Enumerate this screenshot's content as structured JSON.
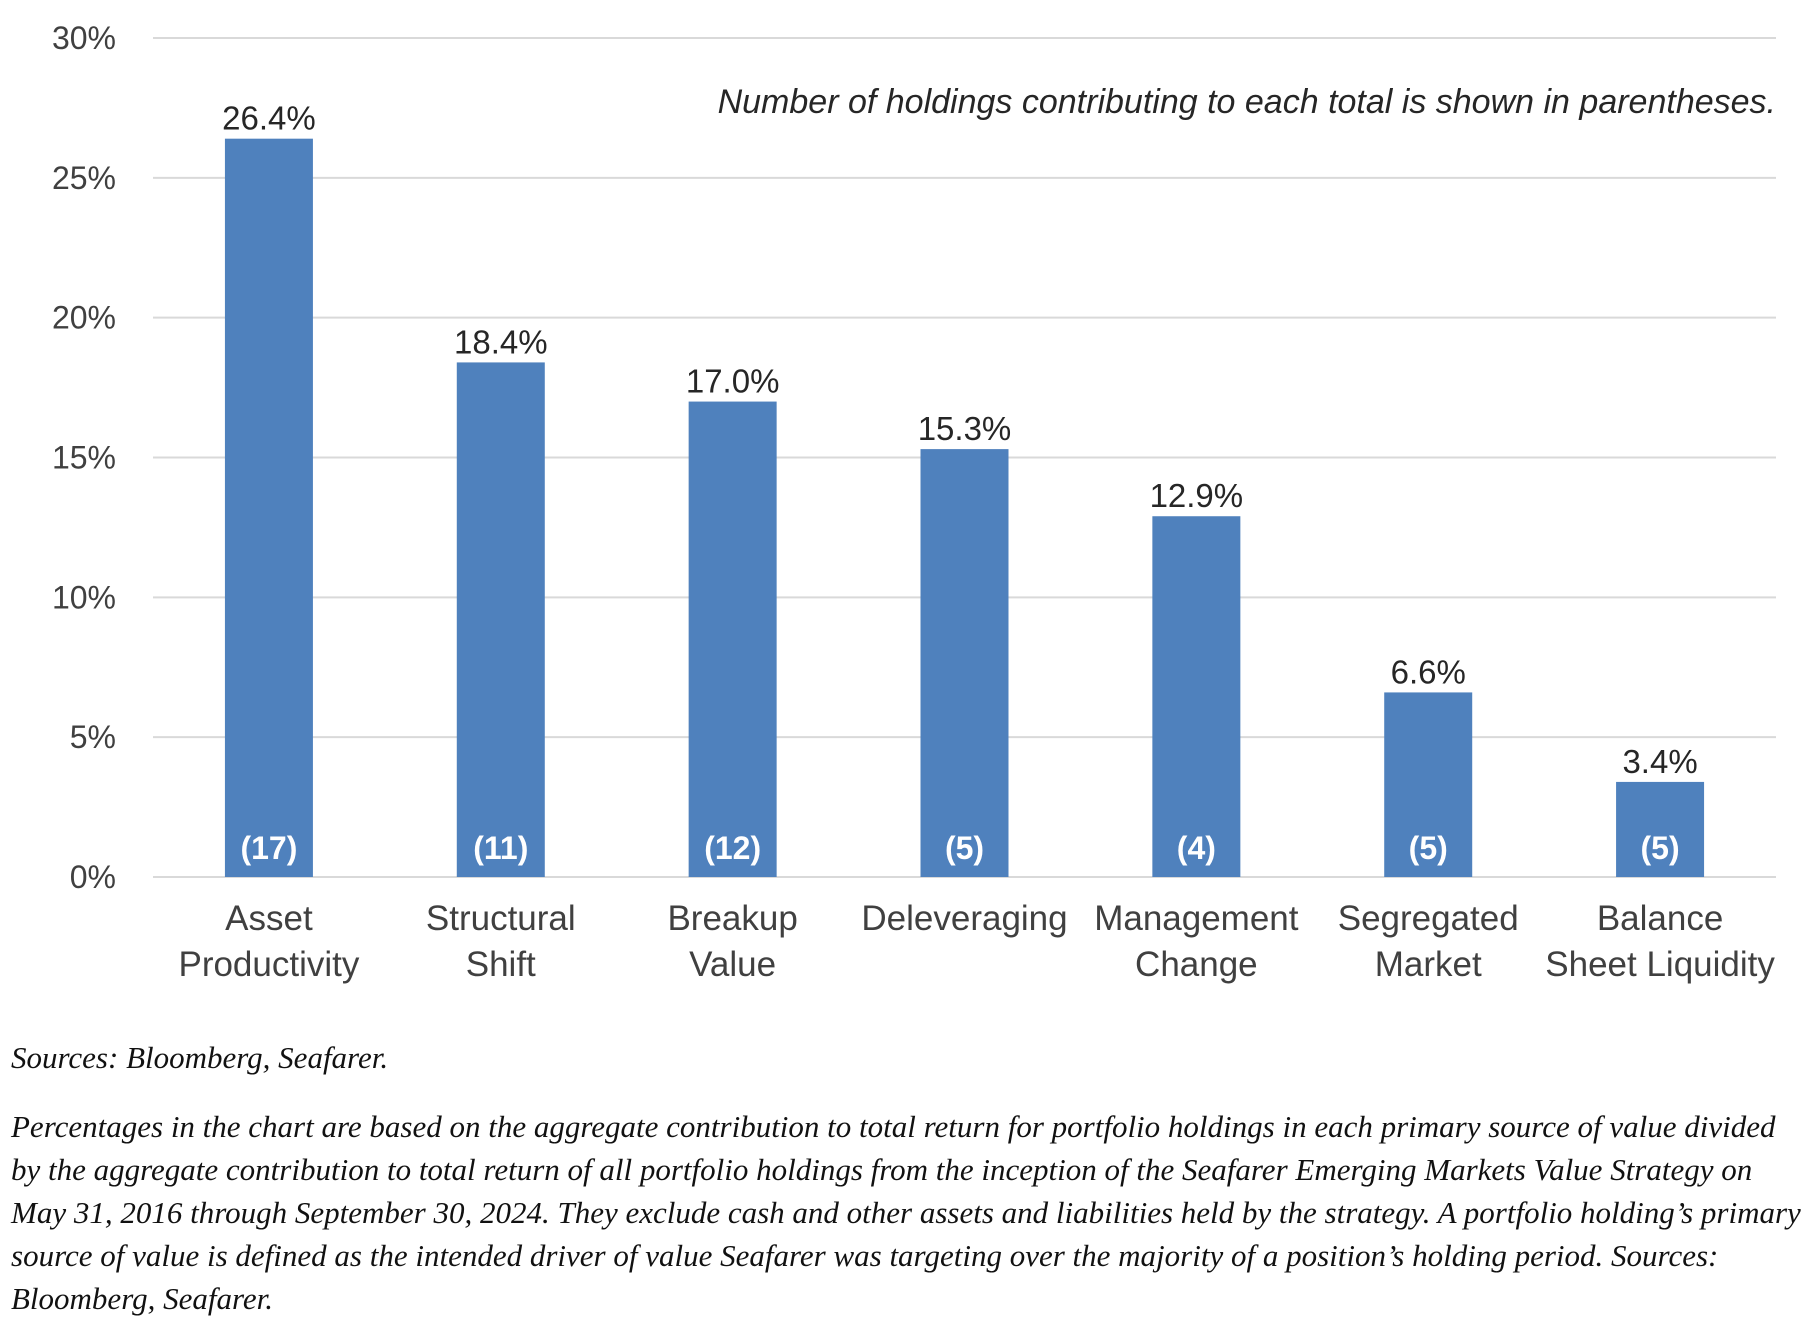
{
  "chart_data": {
    "type": "bar",
    "categories": [
      [
        "Asset",
        "Productivity"
      ],
      [
        "Structural",
        "Shift"
      ],
      [
        "Breakup",
        "Value"
      ],
      [
        "Deleveraging"
      ],
      [
        "Management",
        "Change"
      ],
      [
        "Segregated",
        "Market"
      ],
      [
        "Balance",
        "Sheet Liquidity"
      ]
    ],
    "values": [
      26.4,
      18.4,
      17.0,
      15.3,
      12.9,
      6.6,
      3.4
    ],
    "value_labels": [
      "26.4%",
      "18.4%",
      "17.0%",
      "15.3%",
      "12.9%",
      "6.6%",
      "3.4%"
    ],
    "holding_counts": [
      "(17)",
      "(11)",
      "(12)",
      "(5)",
      "(4)",
      "(5)",
      "(5)"
    ],
    "ylim": [
      0,
      30
    ],
    "yticks": [
      0,
      5,
      10,
      15,
      20,
      25,
      30
    ],
    "ytick_labels": [
      "0%",
      "5%",
      "10%",
      "15%",
      "20%",
      "25%",
      "30%"
    ],
    "grid": true,
    "annotation": "Number of holdings contributing to each total is shown in parentheses.",
    "bar_color": "#4f81bd",
    "grid_color": "#d9d9d9"
  },
  "footer": {
    "sources": "Sources: Bloomberg, Seafarer.",
    "note": "Percentages in the chart are based on the aggregate contribution to total return for portfolio holdings in each primary source of value divided by the aggregate contribution to total return of all portfolio holdings from the inception of the Seafarer Emerging Markets Value Strategy on May 31, 2016 through September 30, 2024. They exclude cash and other assets and liabilities held by the strategy. A portfolio holding’s primary source of value is defined as the intended driver of value Seafarer was targeting over the majority of a position’s holding period. Sources: Bloomberg, Seafarer."
  }
}
